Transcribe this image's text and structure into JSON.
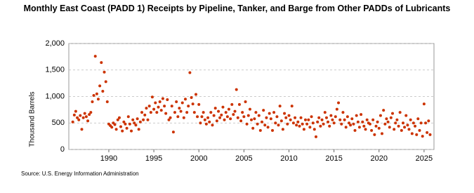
{
  "chart_data": {
    "type": "scatter",
    "title": "Monthly East Coast (PADD 1) Receipts by Pipeline, Tanker, and Barge from Other PADDs of Lubricants",
    "y_label": "Thousand Barrels",
    "source": "Source: U.S. Energy Information Administration",
    "color": "#cc3300",
    "grid": true,
    "xlim": [
      1985.56,
      2026.1
    ],
    "ylim": [
      0,
      2000
    ],
    "xticks": [
      1990,
      1995,
      2000,
      2005,
      2010,
      2015,
      2020,
      2025
    ],
    "yticks": [
      0,
      {
        "value": 500,
        "label": "500"
      },
      {
        "value": 1000,
        "label": "1,000"
      },
      {
        "value": 1500,
        "label": "1,500"
      },
      {
        "value": 2000,
        "label": "2,000"
      }
    ],
    "x": [
      1986,
      1986.17,
      1986.33,
      1986.5,
      1986.67,
      1986.83,
      1987,
      1987.17,
      1987.33,
      1987.5,
      1987.67,
      1987.83,
      1988,
      1988.17,
      1988.33,
      1988.5,
      1988.67,
      1988.83,
      1989,
      1989.17,
      1989.33,
      1989.5,
      1989.67,
      1989.83,
      1990,
      1990.17,
      1990.33,
      1990.5,
      1990.67,
      1990.83,
      1991,
      1991.17,
      1991.33,
      1991.5,
      1991.67,
      1991.83,
      1992,
      1992.17,
      1992.33,
      1992.5,
      1992.67,
      1992.83,
      1993,
      1993.17,
      1993.33,
      1993.5,
      1993.67,
      1993.83,
      1994,
      1994.17,
      1994.33,
      1994.5,
      1994.67,
      1994.83,
      1995,
      1995.17,
      1995.33,
      1995.5,
      1995.67,
      1995.83,
      1996,
      1996.17,
      1996.33,
      1996.5,
      1996.67,
      1996.83,
      1997,
      1997.17,
      1997.33,
      1997.5,
      1997.67,
      1997.83,
      1998,
      1998.17,
      1998.33,
      1998.5,
      1998.67,
      1998.83,
      1999,
      1999.17,
      1999.33,
      1999.5,
      1999.67,
      1999.83,
      2000,
      2000.17,
      2000.33,
      2000.5,
      2000.67,
      2000.83,
      2001,
      2001.17,
      2001.33,
      2001.5,
      2001.67,
      2001.83,
      2002,
      2002.17,
      2002.33,
      2002.5,
      2002.67,
      2002.83,
      2003,
      2003.17,
      2003.33,
      2003.5,
      2003.67,
      2003.83,
      2004,
      2004.17,
      2004.33,
      2004.5,
      2004.67,
      2004.83,
      2005,
      2005.17,
      2005.33,
      2005.5,
      2005.67,
      2005.83,
      2006,
      2006.17,
      2006.33,
      2006.5,
      2006.67,
      2006.83,
      2007,
      2007.17,
      2007.33,
      2007.5,
      2007.67,
      2007.83,
      2008,
      2008.17,
      2008.33,
      2008.5,
      2008.67,
      2008.83,
      2009,
      2009.17,
      2009.33,
      2009.5,
      2009.67,
      2009.83,
      2010,
      2010.17,
      2010.33,
      2010.5,
      2010.67,
      2010.83,
      2011,
      2011.17,
      2011.33,
      2011.5,
      2011.67,
      2011.83,
      2012,
      2012.17,
      2012.33,
      2012.5,
      2012.67,
      2012.83,
      2013,
      2013.17,
      2013.33,
      2013.5,
      2013.67,
      2013.83,
      2014,
      2014.17,
      2014.33,
      2014.5,
      2014.67,
      2014.83,
      2015,
      2015.17,
      2015.33,
      2015.5,
      2015.67,
      2015.83,
      2016,
      2016.17,
      2016.33,
      2016.5,
      2016.67,
      2016.83,
      2017,
      2017.17,
      2017.33,
      2017.5,
      2017.67,
      2017.83,
      2018,
      2018.17,
      2018.33,
      2018.5,
      2018.67,
      2018.83,
      2019,
      2019.17,
      2019.33,
      2019.5,
      2019.67,
      2019.83,
      2020,
      2020.17,
      2020.33,
      2020.5,
      2020.67,
      2020.83,
      2021,
      2021.17,
      2021.33,
      2021.5,
      2021.67,
      2021.83,
      2022,
      2022.17,
      2022.33,
      2022.5,
      2022.67,
      2022.83,
      2023,
      2023.17,
      2023.33,
      2023.5,
      2023.67,
      2023.83,
      2024,
      2024.17,
      2024.33,
      2024.5,
      2024.67,
      2024.83,
      2025,
      2025.17,
      2025.33,
      2025.5,
      2025.67
    ],
    "values": [
      520,
      650,
      720,
      600,
      560,
      640,
      380,
      600,
      680,
      620,
      540,
      660,
      700,
      900,
      1020,
      1760,
      1050,
      950,
      1200,
      1640,
      1100,
      1460,
      1280,
      900,
      480,
      450,
      420,
      500,
      470,
      380,
      560,
      600,
      430,
      350,
      520,
      480,
      400,
      620,
      480,
      350,
      560,
      500,
      460,
      580,
      380,
      520,
      700,
      560,
      650,
      780,
      560,
      820,
      700,
      990,
      760,
      880,
      700,
      800,
      900,
      740,
      960,
      820,
      680,
      940,
      560,
      600,
      820,
      330,
      700,
      900,
      620,
      780,
      720,
      880,
      600,
      950,
      700,
      820,
      1450,
      980,
      860,
      700,
      1040,
      620,
      850,
      500,
      620,
      700,
      560,
      480,
      600,
      520,
      700,
      460,
      640,
      780,
      540,
      720,
      600,
      650,
      800,
      560,
      700,
      620,
      760,
      580,
      850,
      660,
      720,
      1130,
      600,
      850,
      540,
      700,
      620,
      900,
      480,
      640,
      760,
      560,
      400,
      580,
      700,
      480,
      640,
      360,
      520,
      740,
      460,
      600,
      420,
      680,
      580,
      360,
      700,
      500,
      620,
      460,
      820,
      540,
      380,
      680,
      600,
      480,
      640,
      560,
      820,
      500,
      600,
      460,
      520,
      440,
      600,
      480,
      380,
      560,
      480,
      560,
      420,
      620,
      500,
      380,
      240,
      520,
      600,
      440,
      560,
      480,
      700,
      600,
      520,
      440,
      640,
      560,
      500,
      620,
      760,
      880,
      560,
      480,
      700,
      560,
      420,
      620,
      500,
      460,
      580,
      480,
      360,
      640,
      520,
      420,
      660,
      520,
      440,
      380,
      560,
      500,
      480,
      360,
      560,
      280,
      440,
      520,
      400,
      640,
      300,
      740,
      480,
      580,
      520,
      420,
      600,
      680,
      380,
      500,
      560,
      440,
      700,
      360,
      500,
      420,
      640,
      460,
      380,
      560,
      300,
      500,
      440,
      280,
      580,
      360,
      500,
      250,
      860,
      500,
      320,
      540,
      280
    ]
  }
}
